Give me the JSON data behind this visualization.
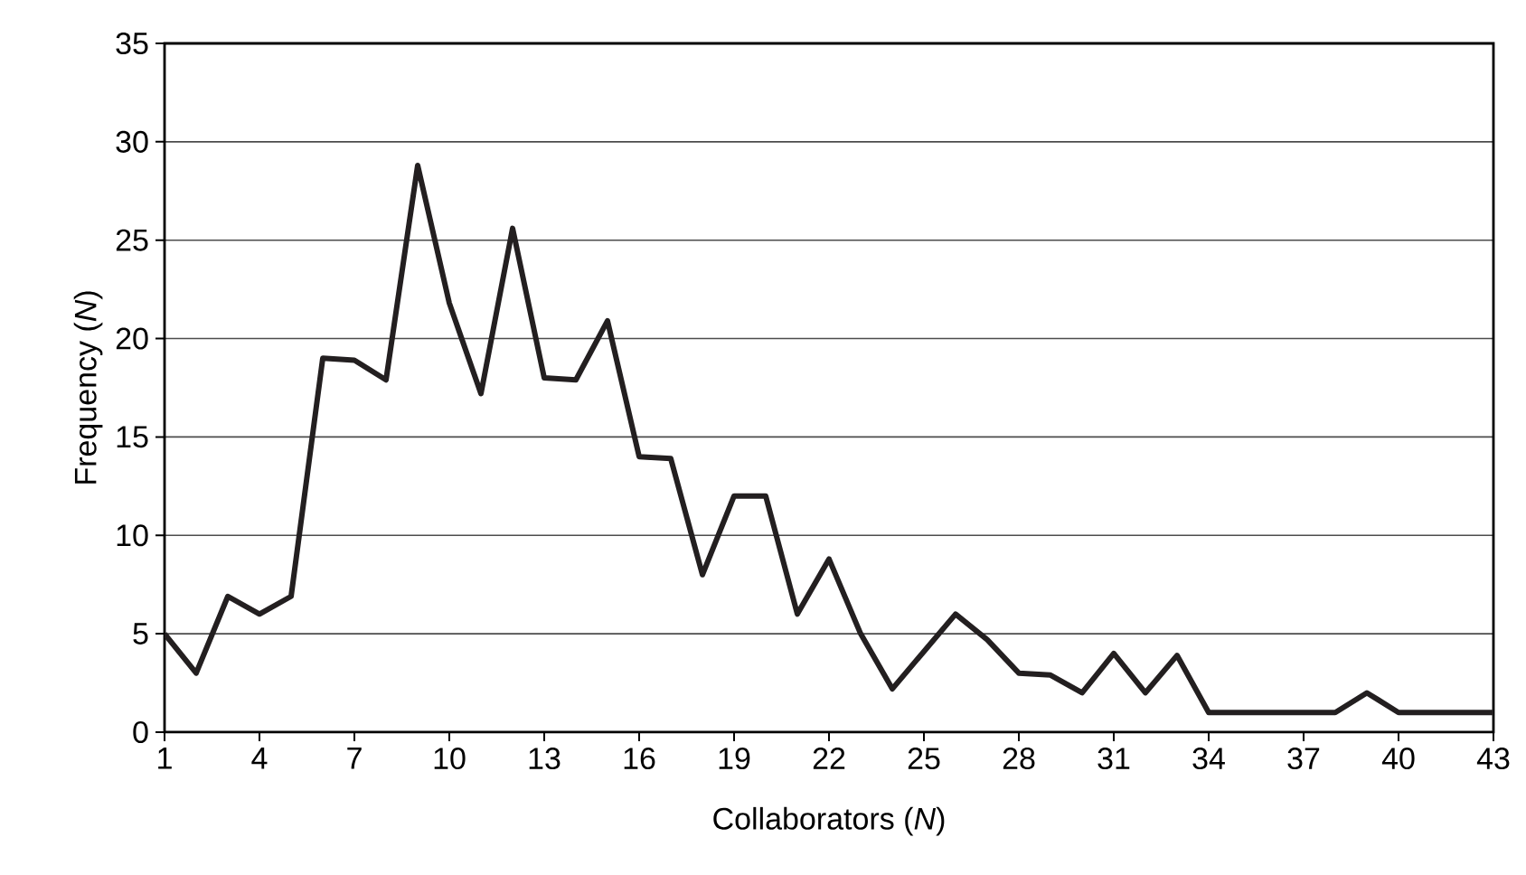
{
  "chart_data": {
    "type": "line",
    "xlabel": "Collaborators (*N*)",
    "ylabel": "Frequency (*N*)",
    "x": [
      1,
      2,
      3,
      4,
      5,
      6,
      7,
      8,
      9,
      10,
      11,
      12,
      13,
      14,
      15,
      16,
      17,
      18,
      19,
      20,
      21,
      22,
      23,
      24,
      25,
      26,
      27,
      28,
      29,
      30,
      31,
      32,
      33,
      34,
      38,
      39,
      40,
      43
    ],
    "series": [
      {
        "color": "#231f20",
        "values": [
          5,
          3,
          6.9,
          6,
          6.9,
          19,
          18.9,
          17.9,
          28.8,
          21.8,
          17.2,
          25.6,
          18,
          17.9,
          20.9,
          14,
          13.9,
          8,
          12,
          12,
          6,
          8.8,
          5,
          2.2,
          4.1,
          6,
          4.7,
          3,
          2.9,
          2,
          4,
          2,
          3.9,
          1,
          1,
          2,
          1,
          1
        ]
      }
    ],
    "xlim": [
      1,
      43
    ],
    "xticks": [
      1,
      4,
      7,
      10,
      13,
      16,
      19,
      22,
      25,
      28,
      31,
      34,
      37,
      40,
      43
    ],
    "ylim": [
      0,
      35
    ],
    "yticks": [
      0,
      5,
      10,
      15,
      20,
      25,
      30,
      35
    ],
    "grid": "y",
    "marker": "none",
    "line_style": "solid"
  }
}
